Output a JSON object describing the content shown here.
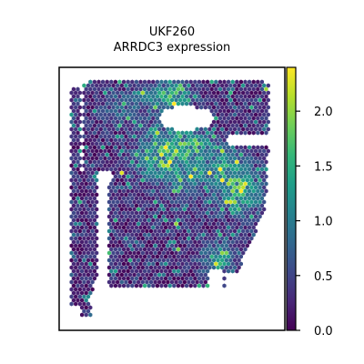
{
  "chart_data": {
    "type": "scatter",
    "title_lines": [
      "UKF260",
      "ARRDC3 expression"
    ],
    "xlabel": "",
    "ylabel": "",
    "colorbar": {
      "colormap": "viridis",
      "range": [
        0.0,
        2.4
      ],
      "ticks": [
        0.0,
        0.5,
        1.0,
        1.5,
        2.0
      ],
      "tick_labels": [
        "0.0",
        "0.5",
        "1.0",
        "1.5",
        "2.0"
      ]
    },
    "spot_shape": "hexagon",
    "colors": {
      "viridis": [
        "#440154",
        "#482878",
        "#3e4989",
        "#31688e",
        "#26828e",
        "#1f9e89",
        "#35b779",
        "#6ece58",
        "#b5de2b",
        "#fde725"
      ]
    }
  }
}
